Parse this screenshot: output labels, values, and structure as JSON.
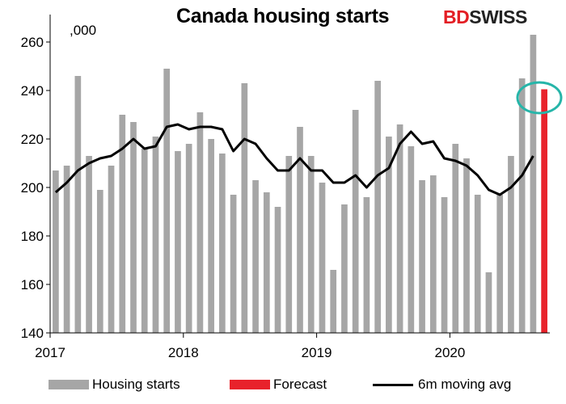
{
  "header": {
    "title": "Canada housing starts",
    "logo_bd": "BD",
    "logo_swiss": "SWISS"
  },
  "unit_label": ",000",
  "colors": {
    "bars": "#a6a6a6",
    "forecast": "#e8222b",
    "line": "#000000",
    "highlight": "#26b5a9"
  },
  "legend": {
    "housing_starts": "Housing starts",
    "forecast": "Forecast",
    "moving_avg": "6m moving avg"
  },
  "chart_data": {
    "type": "bar",
    "title": "Canada housing starts",
    "xlabel": "",
    "ylabel": ",000",
    "ylim": [
      140,
      270
    ],
    "yticks": [
      140,
      160,
      180,
      200,
      220,
      240,
      260
    ],
    "xtick_labels": [
      "2017",
      "2018",
      "2019",
      "2020"
    ],
    "grid": false,
    "legend_position": "bottom",
    "categories": [
      "2017-01",
      "2017-02",
      "2017-03",
      "2017-04",
      "2017-05",
      "2017-06",
      "2017-07",
      "2017-08",
      "2017-09",
      "2017-10",
      "2017-11",
      "2017-12",
      "2018-01",
      "2018-02",
      "2018-03",
      "2018-04",
      "2018-05",
      "2018-06",
      "2018-07",
      "2018-08",
      "2018-09",
      "2018-10",
      "2018-11",
      "2018-12",
      "2019-01",
      "2019-02",
      "2019-03",
      "2019-04",
      "2019-05",
      "2019-06",
      "2019-07",
      "2019-08",
      "2019-09",
      "2019-10",
      "2019-11",
      "2019-12",
      "2020-01",
      "2020-02",
      "2020-03",
      "2020-04",
      "2020-05",
      "2020-06",
      "2020-07",
      "2020-08",
      "2020-09"
    ],
    "series": [
      {
        "name": "Housing starts",
        "values": [
          207,
          209,
          246,
          213,
          199,
          209,
          230,
          227,
          216,
          221,
          249,
          215,
          218,
          231,
          220,
          214,
          197,
          243,
          203,
          198,
          192,
          213,
          225,
          213,
          202,
          166,
          193,
          232,
          196,
          244,
          221,
          226,
          217,
          203,
          205,
          196,
          218,
          212,
          197,
          165,
          197,
          213,
          245,
          263,
          null
        ]
      },
      {
        "name": "Forecast",
        "values": [
          null,
          null,
          null,
          null,
          null,
          null,
          null,
          null,
          null,
          null,
          null,
          null,
          null,
          null,
          null,
          null,
          null,
          null,
          null,
          null,
          null,
          null,
          null,
          null,
          null,
          null,
          null,
          null,
          null,
          null,
          null,
          null,
          null,
          null,
          null,
          null,
          null,
          null,
          null,
          null,
          null,
          null,
          null,
          null,
          240.5
        ]
      },
      {
        "name": "6m moving avg",
        "values": [
          198,
          202,
          207,
          210,
          212,
          213,
          216,
          220,
          216,
          217,
          225,
          226,
          224,
          225,
          225,
          224,
          215,
          220,
          218,
          212,
          207,
          207,
          212,
          207,
          207,
          202,
          202,
          205,
          200,
          205,
          208,
          218,
          223,
          218,
          219,
          212,
          211,
          209,
          205,
          199,
          197,
          200,
          205,
          213,
          null
        ]
      }
    ]
  }
}
